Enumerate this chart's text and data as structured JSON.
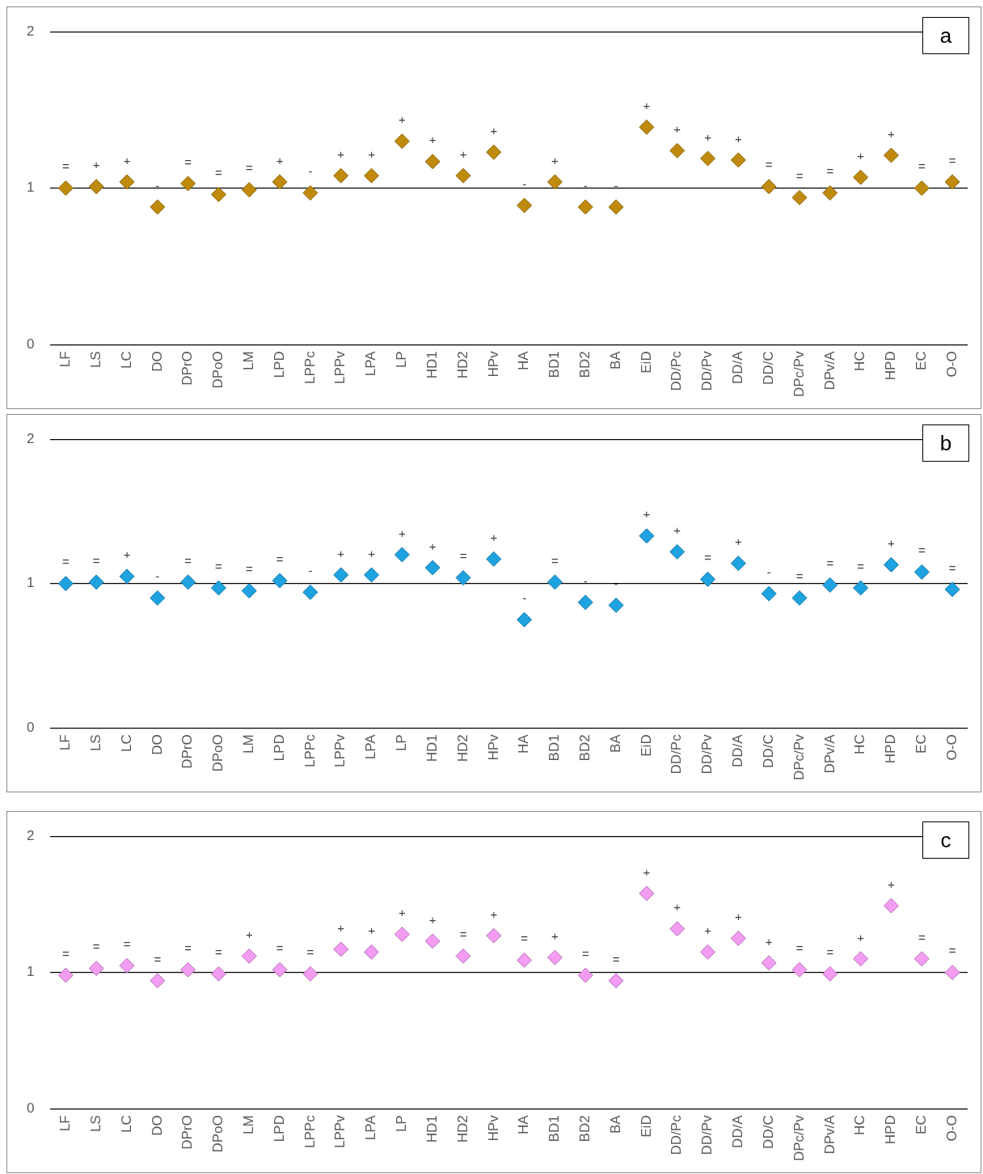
{
  "chart_data": [
    {
      "type": "scatter",
      "title": "a",
      "categories": [
        "LF",
        "LS",
        "LC",
        "DO",
        "DPrO",
        "DPoO",
        "LM",
        "LPD",
        "LPPc",
        "LPPv",
        "LPA",
        "LP",
        "HD1",
        "HD2",
        "HPv",
        "HA",
        "BD1",
        "BD2",
        "BA",
        "EiD",
        "DD/Pc",
        "DD/Pv",
        "DD/A",
        "DD/C",
        "DPc/Pv",
        "DPv/A",
        "HC",
        "HPD",
        "EC",
        "O-O"
      ],
      "values": [
        1.0,
        1.01,
        1.04,
        0.88,
        1.03,
        0.96,
        0.99,
        1.04,
        0.97,
        1.08,
        1.08,
        1.3,
        1.17,
        1.08,
        1.23,
        0.89,
        1.04,
        0.88,
        0.88,
        1.39,
        1.24,
        1.19,
        1.18,
        1.01,
        0.94,
        0.97,
        1.07,
        1.21,
        1.0,
        1.04
      ],
      "color": "#bf8a0e",
      "marker": "diamond",
      "ylim": [
        0,
        2
      ],
      "yticks": [
        0,
        1,
        2
      ],
      "grid": "y",
      "legend": false,
      "annotations": [
        {
          "text": "=",
          "x": "LF",
          "y": 1.0
        },
        {
          "text": "+",
          "x": "LS",
          "y": 1.01
        },
        {
          "text": "+",
          "x": "LC",
          "y": 1.04
        },
        {
          "text": "-",
          "x": "DO",
          "y": 0.88
        },
        {
          "text": "=",
          "x": "DPrO",
          "y": 1.03
        },
        {
          "text": "=",
          "x": "DPoO",
          "y": 0.96
        },
        {
          "text": "=",
          "x": "LM",
          "y": 0.99
        },
        {
          "text": "+",
          "x": "LPD",
          "y": 1.04
        },
        {
          "text": "-",
          "x": "LPPc",
          "y": 0.97
        },
        {
          "text": "+",
          "x": "LPPv",
          "y": 1.08
        },
        {
          "text": "+",
          "x": "LPA",
          "y": 1.08
        },
        {
          "text": "+",
          "x": "LP",
          "y": 1.3
        },
        {
          "text": "+",
          "x": "HD1",
          "y": 1.17
        },
        {
          "text": "+",
          "x": "HD2",
          "y": 1.08
        },
        {
          "text": "+",
          "x": "HPv",
          "y": 1.23
        },
        {
          "text": "-",
          "x": "HA",
          "y": 0.89
        },
        {
          "text": "+",
          "x": "BD1",
          "y": 1.04
        },
        {
          "text": "-",
          "x": "BD2",
          "y": 0.88
        },
        {
          "text": "-",
          "x": "BA",
          "y": 0.88
        },
        {
          "text": "+",
          "x": "EiD",
          "y": 1.39
        },
        {
          "text": "+",
          "x": "DD/Pc",
          "y": 1.24
        },
        {
          "text": "+",
          "x": "DD/Pv",
          "y": 1.19
        },
        {
          "text": "+",
          "x": "DD/A",
          "y": 1.18
        },
        {
          "text": "=",
          "x": "DD/C",
          "y": 1.01
        },
        {
          "text": "=",
          "x": "DPc/Pv",
          "y": 0.94
        },
        {
          "text": "=",
          "x": "DPv/A",
          "y": 0.97
        },
        {
          "text": "+",
          "x": "HC",
          "y": 1.07
        },
        {
          "text": "+",
          "x": "HPD",
          "y": 1.21
        },
        {
          "text": "=",
          "x": "EC",
          "y": 1.0
        },
        {
          "text": "=",
          "x": "O-O",
          "y": 1.04
        }
      ]
    },
    {
      "type": "scatter",
      "title": "b",
      "categories": [
        "LF",
        "LS",
        "LC",
        "DO",
        "DPrO",
        "DPoO",
        "LM",
        "LPD",
        "LPPc",
        "LPPv",
        "LPA",
        "LP",
        "HD1",
        "HD2",
        "HPv",
        "HA",
        "BD1",
        "BD2",
        "BA",
        "EiD",
        "DD/Pc",
        "DD/Pv",
        "DD/A",
        "DD/C",
        "DPc/Pv",
        "DPv/A",
        "HC",
        "HPD",
        "EC",
        "O-O"
      ],
      "values": [
        1.0,
        1.01,
        1.05,
        0.9,
        1.01,
        0.97,
        0.95,
        1.02,
        0.94,
        1.06,
        1.06,
        1.2,
        1.11,
        1.04,
        1.17,
        0.75,
        1.01,
        0.87,
        0.85,
        1.33,
        1.22,
        1.03,
        1.14,
        0.93,
        0.9,
        0.99,
        0.97,
        1.13,
        1.08,
        0.96
      ],
      "color": "#1ea2e0",
      "marker": "diamond",
      "ylim": [
        0,
        2
      ],
      "yticks": [
        0,
        1,
        2
      ],
      "grid": "y",
      "legend": false,
      "annotations": [
        {
          "text": "=",
          "x": "LF",
          "y": 1.0
        },
        {
          "text": "=",
          "x": "LS",
          "y": 1.01
        },
        {
          "text": "+",
          "x": "LC",
          "y": 1.05
        },
        {
          "text": "-",
          "x": "DO",
          "y": 0.9
        },
        {
          "text": "=",
          "x": "DPrO",
          "y": 1.01
        },
        {
          "text": "=",
          "x": "DPoO",
          "y": 0.97
        },
        {
          "text": "=",
          "x": "LM",
          "y": 0.95
        },
        {
          "text": "=",
          "x": "LPD",
          "y": 1.02
        },
        {
          "text": "-",
          "x": "LPPc",
          "y": 0.94
        },
        {
          "text": "+",
          "x": "LPPv",
          "y": 1.06
        },
        {
          "text": "+",
          "x": "LPA",
          "y": 1.06
        },
        {
          "text": "+",
          "x": "LP",
          "y": 1.2
        },
        {
          "text": "+",
          "x": "HD1",
          "y": 1.11
        },
        {
          "text": "=",
          "x": "HD2",
          "y": 1.04
        },
        {
          "text": "+",
          "x": "HPv",
          "y": 1.17
        },
        {
          "text": "-",
          "x": "HA",
          "y": 0.75
        },
        {
          "text": "=",
          "x": "BD1",
          "y": 1.01
        },
        {
          "text": "-",
          "x": "BD2",
          "y": 0.87
        },
        {
          "text": "-",
          "x": "BA",
          "y": 0.85
        },
        {
          "text": "+",
          "x": "EiD",
          "y": 1.33
        },
        {
          "text": "+",
          "x": "DD/Pc",
          "y": 1.22
        },
        {
          "text": "=",
          "x": "DD/Pv",
          "y": 1.03
        },
        {
          "text": "+",
          "x": "DD/A",
          "y": 1.14
        },
        {
          "text": "-",
          "x": "DD/C",
          "y": 0.93
        },
        {
          "text": "=",
          "x": "DPc/Pv",
          "y": 0.9
        },
        {
          "text": "=",
          "x": "DPv/A",
          "y": 0.99
        },
        {
          "text": "=",
          "x": "HC",
          "y": 0.97
        },
        {
          "text": "+",
          "x": "HPD",
          "y": 1.13
        },
        {
          "text": "=",
          "x": "EC",
          "y": 1.08
        },
        {
          "text": "=",
          "x": "O-O",
          "y": 0.96
        }
      ]
    },
    {
      "type": "scatter",
      "title": "c",
      "categories": [
        "LF",
        "LS",
        "LC",
        "DO",
        "DPrO",
        "DPoO",
        "LM",
        "LPD",
        "LPPc",
        "LPPv",
        "LPA",
        "LP",
        "HD1",
        "HD2",
        "HPv",
        "HA",
        "BD1",
        "BD2",
        "BA",
        "EiD",
        "DD/Pc",
        "DD/Pv",
        "DD/A",
        "DD/C",
        "DPc/Pv",
        "DPv/A",
        "HC",
        "HPD",
        "EC",
        "O-O"
      ],
      "values": [
        0.98,
        1.03,
        1.05,
        0.94,
        1.02,
        0.99,
        1.12,
        1.02,
        0.99,
        1.17,
        1.15,
        1.28,
        1.23,
        1.12,
        1.27,
        1.09,
        1.11,
        0.98,
        0.94,
        1.58,
        1.32,
        1.15,
        1.25,
        1.07,
        1.02,
        0.99,
        1.1,
        1.49,
        1.1,
        1.0
      ],
      "color": "#f29cf2",
      "marker": "diamond",
      "ylim": [
        0,
        2
      ],
      "yticks": [
        0,
        1,
        2
      ],
      "grid": "y",
      "legend": false,
      "annotations": [
        {
          "text": "=",
          "x": "LF",
          "y": 0.98
        },
        {
          "text": "=",
          "x": "LS",
          "y": 1.03
        },
        {
          "text": "=",
          "x": "LC",
          "y": 1.05
        },
        {
          "text": "=",
          "x": "DO",
          "y": 0.94
        },
        {
          "text": "=",
          "x": "DPrO",
          "y": 1.02
        },
        {
          "text": "=",
          "x": "DPoO",
          "y": 0.99
        },
        {
          "text": "+",
          "x": "LM",
          "y": 1.12
        },
        {
          "text": "=",
          "x": "LPD",
          "y": 1.02
        },
        {
          "text": "=",
          "x": "LPPc",
          "y": 0.99
        },
        {
          "text": "+",
          "x": "LPPv",
          "y": 1.17
        },
        {
          "text": "+",
          "x": "LPA",
          "y": 1.15
        },
        {
          "text": "+",
          "x": "LP",
          "y": 1.28
        },
        {
          "text": "+",
          "x": "HD1",
          "y": 1.23
        },
        {
          "text": "=",
          "x": "HD2",
          "y": 1.12
        },
        {
          "text": "+",
          "x": "HPv",
          "y": 1.27
        },
        {
          "text": "=",
          "x": "HA",
          "y": 1.09
        },
        {
          "text": "+",
          "x": "BD1",
          "y": 1.11
        },
        {
          "text": "=",
          "x": "BD2",
          "y": 0.98
        },
        {
          "text": "=",
          "x": "BA",
          "y": 0.94
        },
        {
          "text": "+",
          "x": "EiD",
          "y": 1.58
        },
        {
          "text": "+",
          "x": "DD/Pc",
          "y": 1.32
        },
        {
          "text": "+",
          "x": "DD/Pv",
          "y": 1.15
        },
        {
          "text": "+",
          "x": "DD/A",
          "y": 1.25
        },
        {
          "text": "+",
          "x": "DD/C",
          "y": 1.07
        },
        {
          "text": "=",
          "x": "DPc/Pv",
          "y": 1.02
        },
        {
          "text": "=",
          "x": "DPv/A",
          "y": 0.99
        },
        {
          "text": "+",
          "x": "HC",
          "y": 1.1
        },
        {
          "text": "+",
          "x": "HPD",
          "y": 1.49
        },
        {
          "text": "=",
          "x": "EC",
          "y": 1.1
        },
        {
          "text": "=",
          "x": "O-O",
          "y": 1.0
        }
      ]
    }
  ]
}
